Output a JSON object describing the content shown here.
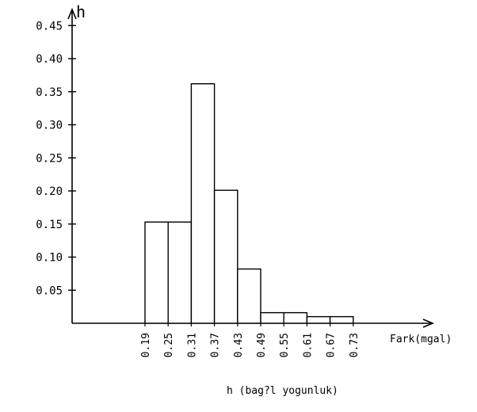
{
  "chart_data": {
    "type": "bar",
    "title": "",
    "ylabel": "h",
    "xlabel": "Fark(mgal)",
    "caption": "h (bag?l yogunluk)",
    "ylim": [
      0,
      0.48
    ],
    "y_ticks": [
      "0.05",
      "0.10",
      "0.15",
      "0.20",
      "0.25",
      "0.30",
      "0.35",
      "0.40",
      "0.45"
    ],
    "bin_edges": [
      "0.19",
      "0.25",
      "0.31",
      "0.37",
      "0.43",
      "0.49",
      "0.55",
      "0.61",
      "0.67",
      "0.73"
    ],
    "values": [
      0.153,
      0.153,
      0.362,
      0.201,
      0.082,
      0.016,
      0.016,
      0.01,
      0.01
    ],
    "grid": false,
    "legend": "none"
  }
}
